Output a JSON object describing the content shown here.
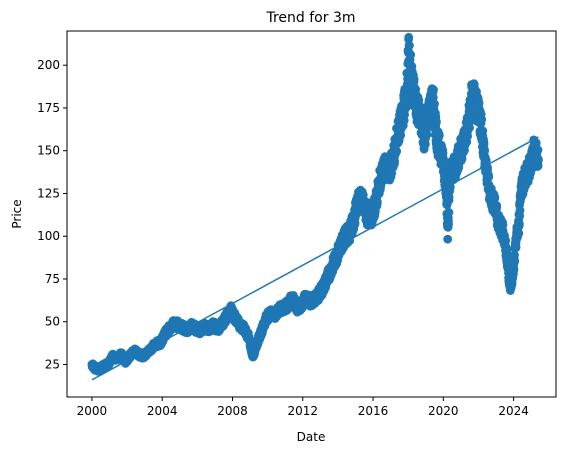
{
  "chart_data": {
    "type": "scatter",
    "title": "Trend for 3m",
    "xlabel": "Date",
    "ylabel": "Price",
    "xlim": [
      "1998-08-01",
      "2026-06-01"
    ],
    "ylim": [
      6,
      220
    ],
    "x_ticks": [
      "2000",
      "2004",
      "2008",
      "2012",
      "2016",
      "2020",
      "2024"
    ],
    "y_ticks": [
      25,
      50,
      75,
      100,
      125,
      150,
      175,
      200
    ],
    "grid": false,
    "series": [
      {
        "kind": "scatter",
        "color": "#1f77b4",
        "points": [
          [
            "2000-01-01",
            25
          ],
          [
            "2000-03-01",
            23
          ],
          [
            "2000-06-01",
            22
          ],
          [
            "2000-09-01",
            24
          ],
          [
            "2000-12-01",
            25
          ],
          [
            "2001-03-01",
            30
          ],
          [
            "2001-06-01",
            28
          ],
          [
            "2001-09-01",
            31
          ],
          [
            "2001-12-01",
            27
          ],
          [
            "2002-03-01",
            30
          ],
          [
            "2002-06-01",
            33
          ],
          [
            "2002-09-01",
            31
          ],
          [
            "2002-12-01",
            30
          ],
          [
            "2003-03-01",
            32
          ],
          [
            "2003-06-01",
            35
          ],
          [
            "2003-09-01",
            37
          ],
          [
            "2003-12-01",
            38
          ],
          [
            "2004-03-01",
            43
          ],
          [
            "2004-06-01",
            46
          ],
          [
            "2004-09-01",
            49
          ],
          [
            "2004-12-01",
            48
          ],
          [
            "2005-03-01",
            47
          ],
          [
            "2005-06-01",
            45
          ],
          [
            "2005-09-01",
            48
          ],
          [
            "2005-12-01",
            46
          ],
          [
            "2006-03-01",
            45
          ],
          [
            "2006-06-01",
            47
          ],
          [
            "2006-09-01",
            46
          ],
          [
            "2006-12-01",
            48
          ],
          [
            "2007-03-01",
            46
          ],
          [
            "2007-06-01",
            49
          ],
          [
            "2007-09-01",
            53
          ],
          [
            "2007-12-01",
            57
          ],
          [
            "2008-03-01",
            52
          ],
          [
            "2008-06-01",
            48
          ],
          [
            "2008-09-01",
            46
          ],
          [
            "2008-12-01",
            41
          ],
          [
            "2009-03-01",
            30
          ],
          [
            "2009-06-01",
            38
          ],
          [
            "2009-09-01",
            45
          ],
          [
            "2009-12-01",
            52
          ],
          [
            "2010-03-01",
            55
          ],
          [
            "2010-06-01",
            54
          ],
          [
            "2010-09-01",
            57
          ],
          [
            "2010-12-01",
            58
          ],
          [
            "2011-03-01",
            60
          ],
          [
            "2011-06-01",
            64
          ],
          [
            "2011-09-01",
            58
          ],
          [
            "2011-12-01",
            60
          ],
          [
            "2012-03-01",
            64
          ],
          [
            "2012-06-01",
            62
          ],
          [
            "2012-09-01",
            63
          ],
          [
            "2012-12-01",
            66
          ],
          [
            "2013-03-01",
            70
          ],
          [
            "2013-06-01",
            76
          ],
          [
            "2013-09-01",
            82
          ],
          [
            "2013-12-01",
            88
          ],
          [
            "2014-03-01",
            95
          ],
          [
            "2014-06-01",
            100
          ],
          [
            "2014-09-01",
            102
          ],
          [
            "2014-12-01",
            110
          ],
          [
            "2015-03-01",
            122
          ],
          [
            "2015-06-01",
            120
          ],
          [
            "2015-09-01",
            112
          ],
          [
            "2015-12-01",
            112
          ],
          [
            "2016-03-01",
            120
          ],
          [
            "2016-06-01",
            134
          ],
          [
            "2016-09-01",
            140
          ],
          [
            "2016-12-01",
            138
          ],
          [
            "2017-03-01",
            146
          ],
          [
            "2017-06-01",
            160
          ],
          [
            "2017-09-01",
            170
          ],
          [
            "2017-12-01",
            185
          ],
          [
            "2018-01-15",
            209
          ],
          [
            "2018-03-01",
            195
          ],
          [
            "2018-06-01",
            178
          ],
          [
            "2018-09-01",
            170
          ],
          [
            "2018-12-01",
            158
          ],
          [
            "2019-03-01",
            172
          ],
          [
            "2019-06-01",
            180
          ],
          [
            "2019-09-01",
            155
          ],
          [
            "2019-12-01",
            148
          ],
          [
            "2020-03-01",
            130
          ],
          [
            "2020-04-01",
            102
          ],
          [
            "2020-06-01",
            138
          ],
          [
            "2020-09-01",
            140
          ],
          [
            "2020-12-01",
            148
          ],
          [
            "2021-03-01",
            155
          ],
          [
            "2021-06-01",
            165
          ],
          [
            "2021-09-01",
            185
          ],
          [
            "2021-12-01",
            175
          ],
          [
            "2022-03-01",
            165
          ],
          [
            "2022-06-01",
            140
          ],
          [
            "2022-09-01",
            125
          ],
          [
            "2022-12-01",
            118
          ],
          [
            "2023-03-01",
            108
          ],
          [
            "2023-06-01",
            102
          ],
          [
            "2023-09-01",
            85
          ],
          [
            "2023-10-15",
            70
          ],
          [
            "2024-01-01",
            80
          ],
          [
            "2024-03-01",
            100
          ],
          [
            "2024-04-15",
            105
          ],
          [
            "2024-06-01",
            128
          ],
          [
            "2024-09-01",
            135
          ],
          [
            "2024-12-01",
            140
          ],
          [
            "2025-03-01",
            150
          ],
          [
            "2025-06-01",
            145
          ]
        ]
      },
      {
        "kind": "line",
        "name": "trend",
        "color": "#1f77b4",
        "x": [
          "2000-01-01",
          "2025-06-01"
        ],
        "y": [
          16,
          158
        ]
      }
    ]
  }
}
